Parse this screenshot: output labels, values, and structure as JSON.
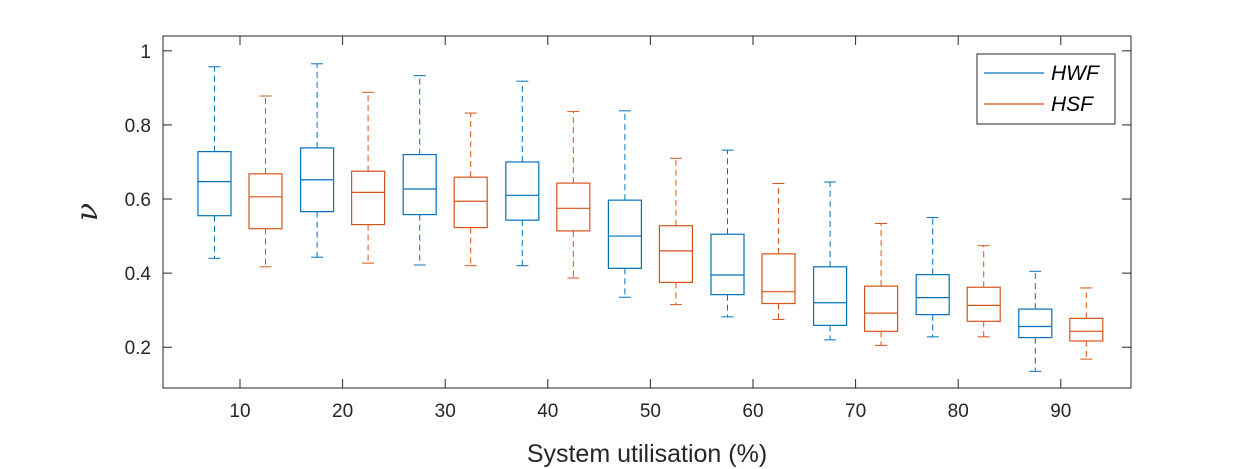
{
  "chart_data": {
    "type": "boxplot",
    "xlabel": "System utilisation (%)",
    "ylabel": "ν",
    "categories": [
      "10",
      "20",
      "30",
      "40",
      "50",
      "60",
      "70",
      "80",
      "90"
    ],
    "ylim": [
      0.09,
      1.04
    ],
    "yticks": [
      0.2,
      0.4,
      0.6,
      0.8,
      1
    ],
    "ytick_labels": [
      "0.2",
      "0.4",
      "0.6",
      "0.8",
      "1"
    ],
    "grid": false,
    "legend_position": "top-right",
    "series": [
      {
        "name": "HWF",
        "color": "#0072BD",
        "boxes": [
          {
            "min": 0.44,
            "q1": 0.555,
            "median": 0.647,
            "q3": 0.728,
            "max": 0.957
          },
          {
            "min": 0.443,
            "q1": 0.566,
            "median": 0.652,
            "q3": 0.738,
            "max": 0.965
          },
          {
            "min": 0.422,
            "q1": 0.558,
            "median": 0.627,
            "q3": 0.72,
            "max": 0.933
          },
          {
            "min": 0.42,
            "q1": 0.543,
            "median": 0.61,
            "q3": 0.7,
            "max": 0.918
          },
          {
            "min": 0.335,
            "q1": 0.413,
            "median": 0.5,
            "q3": 0.597,
            "max": 0.838
          },
          {
            "min": 0.282,
            "q1": 0.342,
            "median": 0.395,
            "q3": 0.505,
            "max": 0.732
          },
          {
            "min": 0.22,
            "q1": 0.259,
            "median": 0.32,
            "q3": 0.417,
            "max": 0.646
          },
          {
            "min": 0.228,
            "q1": 0.288,
            "median": 0.334,
            "q3": 0.396,
            "max": 0.55
          },
          {
            "min": 0.135,
            "q1": 0.226,
            "median": 0.256,
            "q3": 0.303,
            "max": 0.405
          }
        ]
      },
      {
        "name": "HSF",
        "color": "#D95319",
        "boxes": [
          {
            "min": 0.417,
            "q1": 0.52,
            "median": 0.606,
            "q3": 0.668,
            "max": 0.878
          },
          {
            "min": 0.427,
            "q1": 0.531,
            "median": 0.618,
            "q3": 0.675,
            "max": 0.888
          },
          {
            "min": 0.42,
            "q1": 0.523,
            "median": 0.594,
            "q3": 0.659,
            "max": 0.832
          },
          {
            "min": 0.387,
            "q1": 0.514,
            "median": 0.575,
            "q3": 0.643,
            "max": 0.836
          },
          {
            "min": 0.315,
            "q1": 0.375,
            "median": 0.46,
            "q3": 0.528,
            "max": 0.71
          },
          {
            "min": 0.275,
            "q1": 0.318,
            "median": 0.35,
            "q3": 0.452,
            "max": 0.642
          },
          {
            "min": 0.205,
            "q1": 0.243,
            "median": 0.292,
            "q3": 0.365,
            "max": 0.534
          },
          {
            "min": 0.228,
            "q1": 0.27,
            "median": 0.313,
            "q3": 0.362,
            "max": 0.474
          },
          {
            "min": 0.168,
            "q1": 0.217,
            "median": 0.243,
            "q3": 0.278,
            "max": 0.36
          }
        ]
      }
    ]
  }
}
